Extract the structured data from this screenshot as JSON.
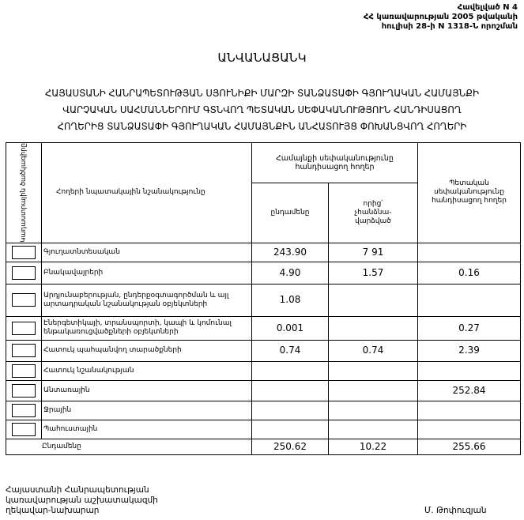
{
  "header": {
    "line1": "Հավելված N 4",
    "line2": "ՀՀ կառավարության 2005 թվականի",
    "line3": "հուլիսի 28-ի N 1318-Ն որոշման"
  },
  "title": "ԱՆՎԱՆԱՑԱՆԿ",
  "subtitle": [
    "ՀԱՅԱՍՏԱՆԻ ՀԱՆՐԱՊԵՏՈՒԹՅԱՆ ՍՅՈՒՆԻՔԻ ՄԱՐԶԻ ՏԱՆՁԱՏԱՓԻ ԳՅՈՒՂԱԿԱՆ ՀԱՄԱՅՆՔԻ",
    "ՎԱՐՉԱԿԱՆ ՍԱՀՄԱՆՆԵՐՈՒՄ ԳՏՆՎՈՂ ՊԵՏԱԿԱՆ ՍԵՓԱԿԱՆՈՒԹՅՈՒՆ ՀԱՆԴԻՍԱՑՈՂ",
    "ՀՈՂԵՐԻՑ ՏԱՆՁԱՏԱՓԻ ԳՅՈՒՂԱԿԱՆ ՀԱՄԱՅՆՔԻՆ ԱՆՀԱՏՈՒՅՑ ՓՈԽԱՆՑՎՈՂ ՀՈՂԵՐԻ"
  ],
  "table": {
    "headers": {
      "code": "Կադաստրային ծածկագիրը",
      "purpose": "Հողերի նպատակային նշանակությունը",
      "community": "Համայնքի սեփականությունը հանդիսացող հողեր",
      "total": "ընդամենը",
      "of_which": "որից՝ չհանձնա-վարձված",
      "state": "Պետական սեփականությունը հանդիսացող հողեր"
    },
    "rows": [
      {
        "purpose": "Գյուղատնտեսական",
        "total": "243.90",
        "of_which": "7 91",
        "state": ""
      },
      {
        "purpose": "Բնակավայրերի",
        "total": "4.90",
        "of_which": "1.57",
        "state": "0.16"
      },
      {
        "purpose": "Արդյունաբերության, ընդերքօգտագործման և այլ արտադրական նշանակության օբյեկտների",
        "total": "1.08",
        "of_which": "",
        "state": ""
      },
      {
        "purpose": "Էներգետիկայի, տրանսպորտի, կապի և կոմունալ ենթակառուցվածքների օբյեկտների",
        "total": "0.001",
        "of_which": "",
        "state": "0.27"
      },
      {
        "purpose": "Հատուկ պահպանվող տարածքների",
        "total": "0.74",
        "of_which": "0.74",
        "state": "2.39"
      },
      {
        "purpose": "Հատուկ նշանակության",
        "total": "",
        "of_which": "",
        "state": ""
      },
      {
        "purpose": "Անտառային",
        "total": "",
        "of_which": "",
        "state": "252.84"
      },
      {
        "purpose": "Ջրային",
        "total": "",
        "of_which": "",
        "state": ""
      },
      {
        "purpose": "Պահուստային",
        "total": "",
        "of_which": "",
        "state": ""
      }
    ],
    "totals": {
      "label": "Ընդամենը",
      "total": "250.62",
      "of_which": "10.22",
      "state": "255.66"
    }
  },
  "footer": {
    "line1": "Հայաստանի Հանրապետության",
    "line2": "կառավարության աշխատակազմի",
    "line3": "ղեկավար-նախարար",
    "signature": "Մ. Թոփուզյան"
  }
}
